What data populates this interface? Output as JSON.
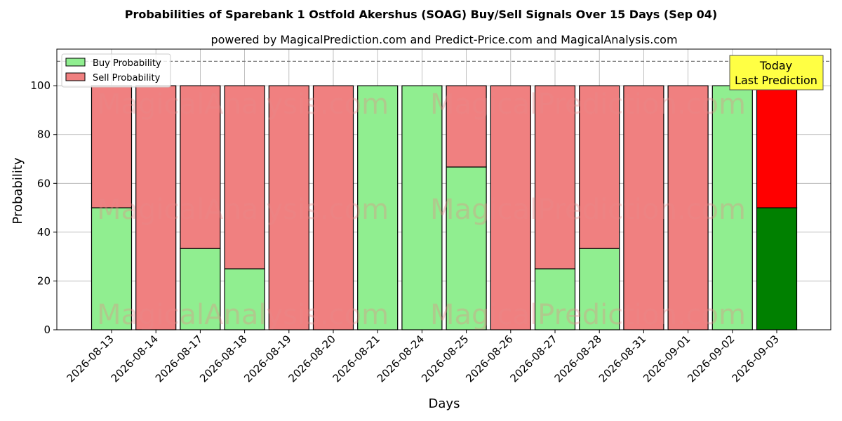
{
  "chart_data": {
    "type": "bar",
    "stacked": true,
    "title": "Probabilities of Sparebank 1 Ostfold Akershus (SOAG) Buy/Sell Signals Over 15 Days (Sep 04)",
    "subtitle": "powered by MagicalPrediction.com and Predict-Price.com and MagicalAnalysis.com",
    "xlabel": "Days",
    "ylabel": "Probability",
    "ylim": [
      0,
      115
    ],
    "yticks": [
      0,
      20,
      40,
      60,
      80,
      100
    ],
    "reference_line": 110,
    "grid": true,
    "legend_position": "top-left",
    "categories": [
      "2026-08-13",
      "2026-08-14",
      "2026-08-17",
      "2026-08-18",
      "2026-08-19",
      "2026-08-20",
      "2026-08-21",
      "2026-08-24",
      "2026-08-25",
      "2026-08-26",
      "2026-08-27",
      "2026-08-28",
      "2026-08-31",
      "2026-09-01",
      "2026-09-02",
      "2026-09-03"
    ],
    "series": [
      {
        "name": "Buy Probability",
        "color": "#90ee90",
        "values": [
          50,
          0,
          33.3,
          25,
          0,
          0,
          100,
          100,
          66.7,
          0,
          25,
          33.3,
          0,
          0,
          100,
          50
        ]
      },
      {
        "name": "Sell Probability",
        "color": "#f08080",
        "values": [
          50,
          100,
          66.7,
          75,
          100,
          100,
          0,
          0,
          33.3,
          100,
          75,
          66.7,
          100,
          100,
          0,
          50
        ]
      }
    ],
    "highlight": {
      "index": 15,
      "buy_color": "#008000",
      "sell_color": "#ff0000"
    },
    "annotation": "Today\nLast Prediction",
    "watermarks": [
      "MagicalAnalysis.com",
      "MagicalPrediction.com"
    ]
  }
}
